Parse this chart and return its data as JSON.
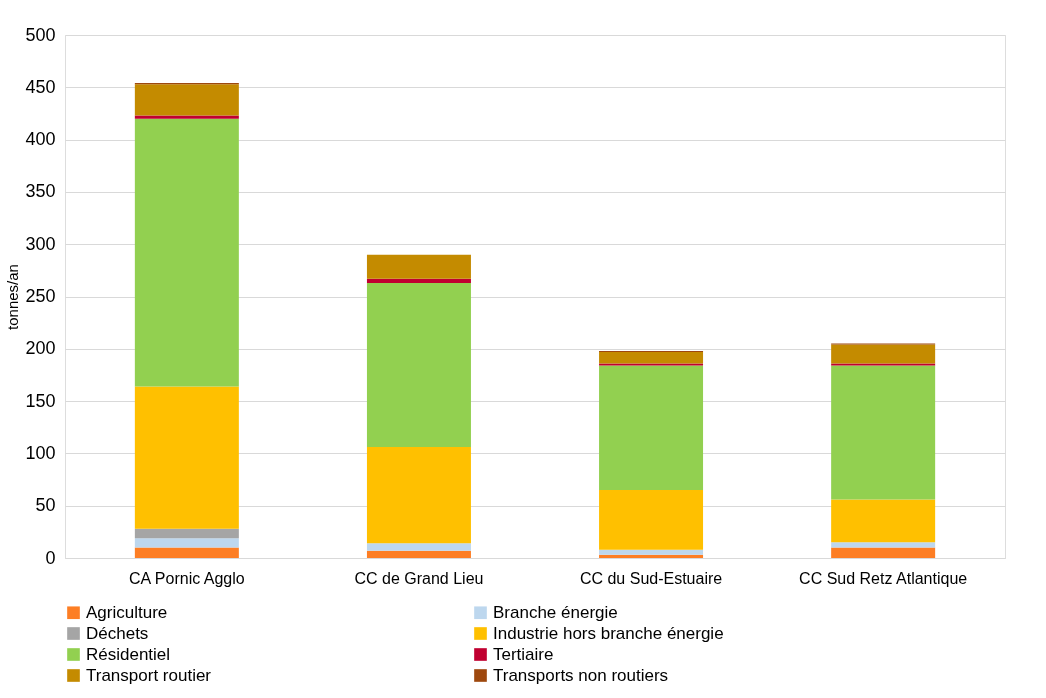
{
  "chart_data": {
    "type": "bar",
    "stacked": true,
    "ylabel": "tonnes/an",
    "categories": [
      "CA Pornic Agglo",
      "CC de Grand Lieu",
      "CC du Sud-Estuaire",
      "CC Sud Retz Atlantique"
    ],
    "series": [
      {
        "name": "Agriculture",
        "color": "#fd7e24",
        "values": [
          10,
          7,
          3,
          10
        ]
      },
      {
        "name": "Branche énergie",
        "color": "#bdd7ee",
        "values": [
          9,
          7,
          5,
          5
        ]
      },
      {
        "name": "Déchets",
        "color": "#a5a5a5",
        "values": [
          9,
          0,
          0,
          0
        ]
      },
      {
        "name": "Industrie hors branche énergie",
        "color": "#ffc000",
        "values": [
          136,
          92,
          57,
          41
        ]
      },
      {
        "name": "Résidentiel",
        "color": "#92d050",
        "values": [
          256,
          157,
          119,
          128
        ]
      },
      {
        "name": "Tertiaire",
        "color": "#c00030",
        "values": [
          3,
          4,
          2,
          2
        ]
      },
      {
        "name": "Transport routier",
        "color": "#c48b00",
        "values": [
          30,
          23,
          11,
          18
        ]
      },
      {
        "name": "Transports non routiers",
        "color": "#9e480e",
        "values": [
          1,
          0,
          1,
          1
        ]
      }
    ],
    "ylim": [
      0,
      500
    ],
    "yticks": [
      0,
      50,
      100,
      150,
      200,
      250,
      300,
      350,
      400,
      450,
      500
    ],
    "grid": "y",
    "legend": "bottom"
  }
}
